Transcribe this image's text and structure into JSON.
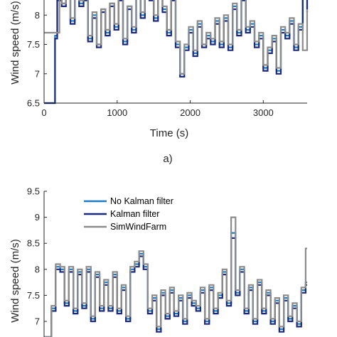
{
  "chart_data": [
    {
      "panel_label": "a)",
      "type": "line",
      "xlabel": "Time (s)",
      "ylabel": "Wind speed (m/s)",
      "xlim": [
        0,
        3600
      ],
      "ylim": [
        6.5,
        8.5
      ],
      "xticks": [
        "0",
        "1000",
        "2000",
        "3000"
      ],
      "yticks": [
        "6.5",
        "7",
        "7.5",
        "8"
      ],
      "xtick_values": [
        0,
        1000,
        2000,
        3000
      ],
      "ytick_values": [
        6.5,
        7,
        7.5,
        8
      ],
      "grid": false,
      "series": [
        {
          "color": "#1f7bbf",
          "x": [
            0,
            150,
            180,
            240,
            300,
            360,
            420,
            480,
            540,
            600,
            660,
            720,
            780,
            840,
            900,
            960,
            1020,
            1080,
            1140,
            1200,
            1260,
            1320,
            1380,
            1440,
            1500,
            1560,
            1620,
            1680,
            1740,
            1800,
            1860,
            1920,
            1980,
            2040,
            2100,
            2160,
            2220,
            2280,
            2340,
            2400,
            2460,
            2520,
            2580,
            2640,
            2700,
            2760,
            2820,
            2880,
            2940,
            3000,
            3060,
            3120,
            3180,
            3240,
            3300,
            3360,
            3420,
            3480,
            3540,
            3600
          ],
          "y": [
            6.5,
            7.65,
            8.3,
            8.2,
            8.35,
            7.9,
            8.4,
            8.2,
            8.3,
            7.6,
            8.0,
            7.5,
            8.1,
            7.7,
            8.2,
            7.8,
            8.3,
            7.55,
            8.15,
            7.75,
            8.35,
            8.0,
            8.4,
            8.3,
            7.95,
            8.4,
            8.1,
            7.7,
            8.3,
            7.5,
            7.0,
            7.45,
            7.75,
            7.35,
            7.85,
            7.5,
            7.65,
            7.55,
            7.9,
            7.5,
            7.95,
            7.45,
            8.15,
            7.7,
            8.3,
            7.75,
            7.85,
            7.5,
            7.65,
            7.1,
            7.4,
            7.6,
            7.05,
            7.75,
            7.65,
            7.9,
            7.45,
            7.8,
            8.35,
            8.1
          ]
        },
        {
          "color": "#1b2a7a",
          "x": [
            0,
            150,
            180,
            240,
            300,
            360,
            420,
            480,
            540,
            600,
            660,
            720,
            780,
            840,
            900,
            960,
            1020,
            1080,
            1140,
            1200,
            1260,
            1320,
            1380,
            1440,
            1500,
            1560,
            1620,
            1680,
            1740,
            1800,
            1860,
            1920,
            1980,
            2040,
            2100,
            2160,
            2220,
            2280,
            2340,
            2400,
            2460,
            2520,
            2580,
            2640,
            2700,
            2760,
            2820,
            2880,
            2940,
            3000,
            3060,
            3120,
            3180,
            3240,
            3300,
            3360,
            3420,
            3480,
            3540,
            3600
          ],
          "y": [
            6.5,
            7.6,
            8.25,
            8.15,
            8.3,
            7.85,
            8.35,
            8.15,
            8.25,
            7.55,
            7.95,
            7.45,
            8.05,
            7.65,
            8.15,
            7.75,
            8.25,
            7.5,
            8.1,
            7.7,
            8.3,
            7.95,
            8.35,
            8.25,
            7.9,
            8.35,
            8.05,
            7.65,
            8.25,
            7.45,
            6.95,
            7.4,
            7.7,
            7.3,
            7.8,
            7.45,
            7.6,
            7.5,
            7.85,
            7.45,
            7.9,
            7.4,
            8.1,
            7.65,
            8.25,
            7.7,
            7.8,
            7.45,
            7.6,
            7.05,
            7.35,
            7.55,
            7.0,
            7.7,
            7.6,
            7.85,
            7.4,
            7.75,
            8.3,
            8.05
          ]
        },
        {
          "color": "#8c8c8c",
          "x": [
            0,
            210,
            240,
            300,
            360,
            420,
            480,
            540,
            600,
            660,
            720,
            780,
            840,
            900,
            960,
            1020,
            1080,
            1140,
            1200,
            1260,
            1320,
            1380,
            1440,
            1500,
            1560,
            1620,
            1680,
            1740,
            1800,
            1860,
            1920,
            1980,
            2040,
            2100,
            2160,
            2220,
            2280,
            2340,
            2400,
            2460,
            2520,
            2580,
            2640,
            2700,
            2760,
            2820,
            2880,
            2940,
            3000,
            3060,
            3120,
            3180,
            3240,
            3300,
            3360,
            3420,
            3480,
            3540,
            3600
          ],
          "y": [
            7.7,
            8.35,
            8.2,
            8.4,
            7.95,
            8.4,
            8.25,
            8.35,
            7.65,
            8.05,
            7.5,
            8.1,
            7.75,
            8.2,
            7.85,
            8.35,
            7.6,
            8.15,
            7.8,
            8.4,
            8.05,
            8.45,
            8.35,
            8.0,
            8.4,
            8.15,
            7.75,
            8.35,
            7.55,
            7.0,
            7.5,
            7.8,
            7.4,
            7.9,
            7.5,
            7.7,
            7.6,
            7.95,
            7.55,
            8.0,
            7.5,
            8.2,
            7.75,
            8.35,
            7.8,
            7.9,
            7.55,
            7.7,
            7.15,
            7.45,
            7.65,
            7.1,
            7.8,
            7.7,
            7.95,
            7.5,
            7.85,
            7.4,
            8.1
          ]
        }
      ]
    },
    {
      "type": "line",
      "ylabel": "Wind speed (m/s)",
      "xlim": [
        0,
        3600
      ],
      "ylim": [
        6.7,
        9.5
      ],
      "yticks": [
        "7",
        "7.5",
        "8",
        "8.5",
        "9",
        "9.5"
      ],
      "ytick_values": [
        7,
        7.5,
        8,
        8.5,
        9,
        9.5
      ],
      "grid": false,
      "legend_position": "top-left",
      "series": [
        {
          "name": "No Kalman filter",
          "color": "#1f7bbf",
          "x": [
            0,
            100,
            160,
            220,
            280,
            340,
            400,
            460,
            520,
            580,
            640,
            700,
            760,
            820,
            880,
            940,
            1000,
            1060,
            1120,
            1180,
            1240,
            1300,
            1360,
            1420,
            1480,
            1540,
            1600,
            1660,
            1720,
            1780,
            1840,
            1900,
            1960,
            2020,
            2080,
            2140,
            2200,
            2260,
            2320,
            2380,
            2440,
            2500,
            2560,
            2620,
            2680,
            2740,
            2800,
            2860,
            2920,
            2980,
            3040,
            3100,
            3160,
            3220,
            3280,
            3340,
            3400,
            3460,
            3520,
            3580,
            3600
          ],
          "y": [
            6.7,
            7.25,
            8.05,
            8.0,
            7.35,
            8.0,
            7.2,
            7.95,
            7.3,
            8.0,
            7.05,
            7.9,
            7.25,
            7.75,
            7.25,
            7.9,
            7.2,
            7.65,
            7.05,
            8.0,
            8.1,
            8.3,
            8.05,
            7.2,
            7.45,
            6.85,
            7.55,
            7.1,
            7.6,
            7.15,
            7.45,
            7.0,
            7.5,
            7.35,
            7.25,
            7.6,
            7.0,
            7.65,
            7.2,
            7.5,
            7.95,
            7.35,
            8.7,
            7.55,
            8.0,
            7.2,
            7.65,
            7.0,
            7.75,
            7.2,
            7.55,
            7.0,
            7.4,
            6.85,
            7.45,
            7.05,
            7.3,
            6.95,
            7.6,
            7.75,
            7.75
          ]
        },
        {
          "name": "Kalman filter",
          "color": "#1b2a7a",
          "x": [
            0,
            100,
            160,
            220,
            280,
            340,
            400,
            460,
            520,
            580,
            640,
            700,
            760,
            820,
            880,
            940,
            1000,
            1060,
            1120,
            1180,
            1240,
            1300,
            1360,
            1420,
            1480,
            1540,
            1600,
            1660,
            1720,
            1780,
            1840,
            1900,
            1960,
            2020,
            2080,
            2140,
            2200,
            2260,
            2320,
            2380,
            2440,
            2500,
            2560,
            2620,
            2680,
            2740,
            2800,
            2860,
            2920,
            2980,
            3040,
            3100,
            3160,
            3220,
            3280,
            3340,
            3400,
            3460,
            3520,
            3580,
            3600
          ],
          "y": [
            6.7,
            7.2,
            8.0,
            7.95,
            7.3,
            7.95,
            7.15,
            7.9,
            7.25,
            7.95,
            7.0,
            7.85,
            7.2,
            7.7,
            7.2,
            7.85,
            7.15,
            7.6,
            7.0,
            7.95,
            8.05,
            8.25,
            8.0,
            7.15,
            7.4,
            6.8,
            7.5,
            7.05,
            7.55,
            7.1,
            7.4,
            6.95,
            7.45,
            7.3,
            7.2,
            7.55,
            6.95,
            7.6,
            7.15,
            7.45,
            7.9,
            7.3,
            8.6,
            7.5,
            7.95,
            7.15,
            7.6,
            6.95,
            7.7,
            7.15,
            7.5,
            6.95,
            7.35,
            6.8,
            7.4,
            7.0,
            7.25,
            6.9,
            7.55,
            7.7,
            7.7
          ]
        },
        {
          "name": "SimWindFarm",
          "color": "#8c8c8c",
          "x": [
            0,
            100,
            160,
            220,
            280,
            340,
            400,
            460,
            520,
            580,
            640,
            700,
            760,
            820,
            880,
            940,
            1000,
            1060,
            1120,
            1180,
            1240,
            1300,
            1360,
            1420,
            1480,
            1540,
            1600,
            1660,
            1720,
            1780,
            1840,
            1900,
            1960,
            2020,
            2080,
            2140,
            2200,
            2260,
            2320,
            2380,
            2440,
            2500,
            2560,
            2620,
            2680,
            2740,
            2800,
            2860,
            2920,
            2980,
            3040,
            3100,
            3160,
            3220,
            3280,
            3340,
            3400,
            3460,
            3520,
            3580,
            3600
          ],
          "y": [
            6.7,
            7.3,
            8.1,
            8.05,
            7.4,
            8.05,
            7.25,
            8.0,
            7.35,
            8.05,
            7.1,
            7.95,
            7.3,
            7.8,
            7.3,
            7.95,
            7.25,
            7.7,
            7.1,
            8.05,
            8.15,
            8.35,
            8.1,
            7.25,
            7.5,
            6.9,
            7.6,
            7.15,
            7.65,
            7.2,
            7.5,
            7.05,
            7.55,
            7.4,
            7.3,
            7.65,
            7.05,
            7.7,
            7.25,
            7.55,
            8.0,
            7.4,
            9.0,
            7.6,
            8.05,
            7.25,
            7.7,
            7.05,
            7.8,
            7.25,
            7.6,
            7.05,
            7.45,
            6.9,
            7.5,
            7.1,
            7.35,
            7.0,
            7.65,
            8.4,
            8.4
          ]
        }
      ]
    }
  ]
}
